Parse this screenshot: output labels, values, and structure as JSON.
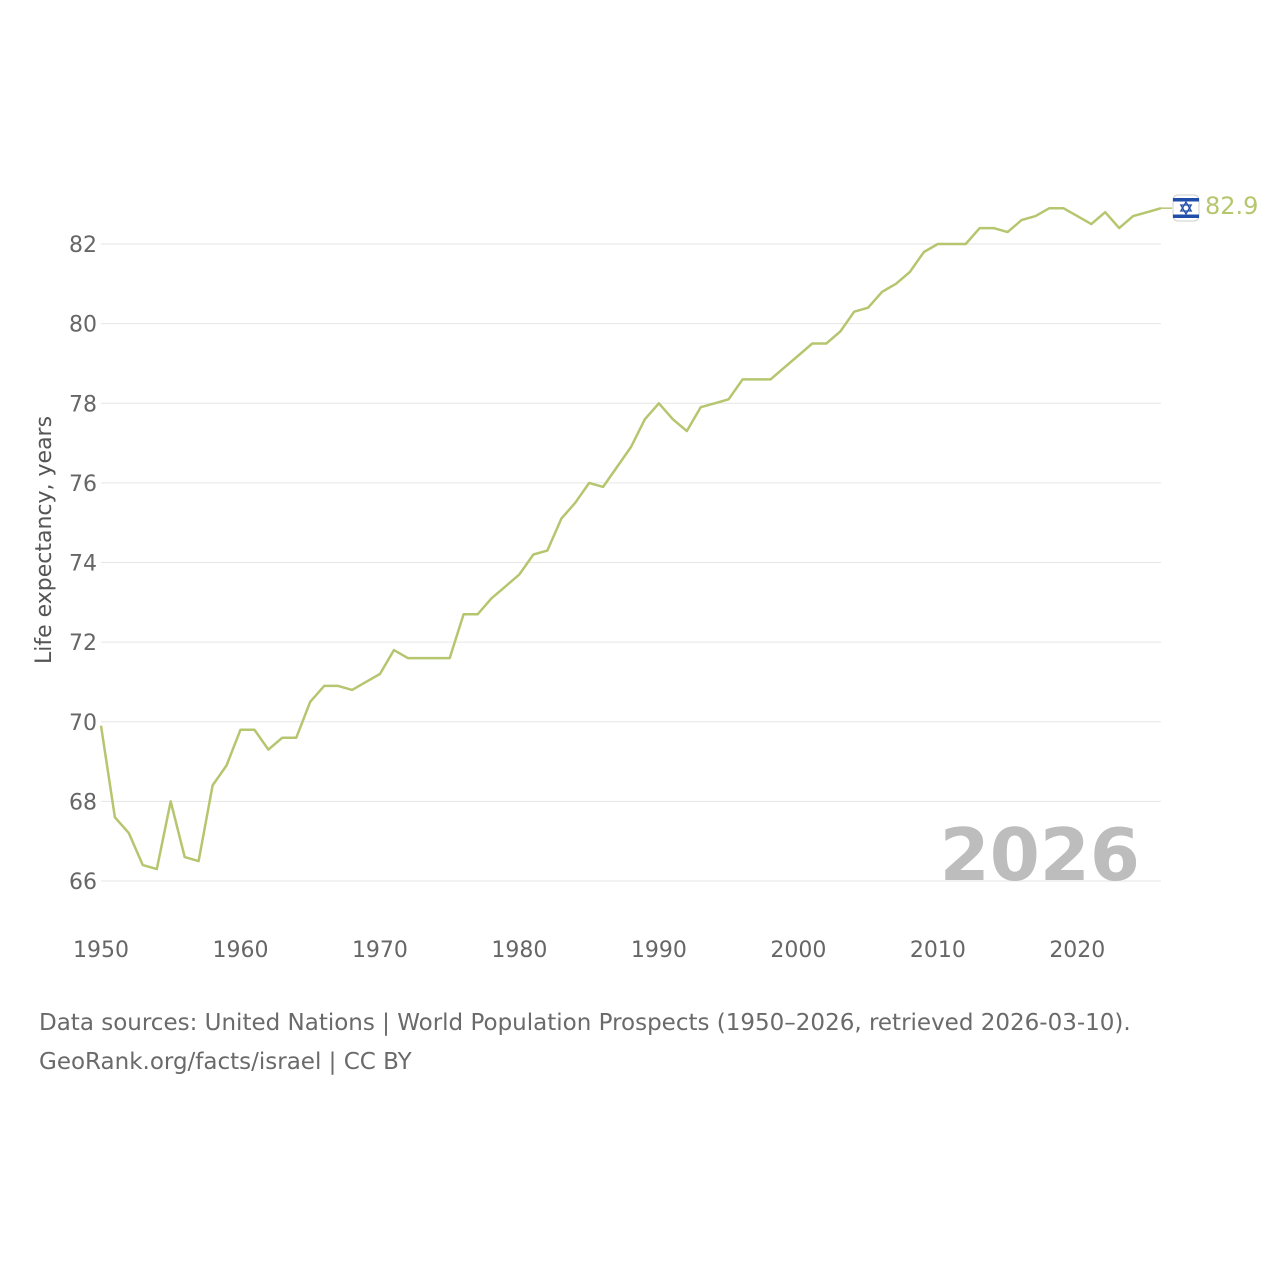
{
  "chart_data": {
    "type": "line",
    "ylabel": "Life expectancy, years",
    "xlabel": "",
    "xlim": [
      1950,
      2026
    ],
    "ylim": [
      65,
      83.5
    ],
    "yticks": [
      66,
      68,
      70,
      72,
      74,
      76,
      78,
      80,
      82
    ],
    "xticks": [
      1950,
      1960,
      1970,
      1980,
      1990,
      2000,
      2010,
      2020
    ],
    "grid": true,
    "current_year_label": "2026",
    "end_value_label": "82.9",
    "color": "#b5c66f",
    "series": [
      {
        "name": "Israel",
        "icon": "israel-flag-icon",
        "x": [
          1950,
          1951,
          1952,
          1953,
          1954,
          1955,
          1956,
          1957,
          1958,
          1959,
          1960,
          1961,
          1962,
          1963,
          1964,
          1965,
          1966,
          1967,
          1968,
          1969,
          1970,
          1971,
          1972,
          1973,
          1974,
          1975,
          1976,
          1977,
          1978,
          1979,
          1980,
          1981,
          1982,
          1983,
          1984,
          1985,
          1986,
          1987,
          1988,
          1989,
          1990,
          1991,
          1992,
          1993,
          1994,
          1995,
          1996,
          1997,
          1998,
          1999,
          2000,
          2001,
          2002,
          2003,
          2004,
          2005,
          2006,
          2007,
          2008,
          2009,
          2010,
          2011,
          2012,
          2013,
          2014,
          2015,
          2016,
          2017,
          2018,
          2019,
          2020,
          2021,
          2022,
          2023,
          2024,
          2025,
          2026
        ],
        "values": [
          69.9,
          67.6,
          67.2,
          66.4,
          66.3,
          68.0,
          66.6,
          66.5,
          68.4,
          68.9,
          69.8,
          69.8,
          69.3,
          69.6,
          69.6,
          70.5,
          70.9,
          70.9,
          70.8,
          71.0,
          71.2,
          71.8,
          71.6,
          71.6,
          71.6,
          71.6,
          72.7,
          72.7,
          73.1,
          73.4,
          73.7,
          74.2,
          74.3,
          75.1,
          75.5,
          76.0,
          75.9,
          76.4,
          76.9,
          77.6,
          78.0,
          77.6,
          77.3,
          77.9,
          78.0,
          78.1,
          78.6,
          78.6,
          78.6,
          78.9,
          79.2,
          79.5,
          79.5,
          79.8,
          80.3,
          80.4,
          80.8,
          81.0,
          81.3,
          81.8,
          82.0,
          82.0,
          82.0,
          82.4,
          82.4,
          82.3,
          82.6,
          82.7,
          82.9,
          82.9,
          82.7,
          82.5,
          82.8,
          82.4,
          82.7,
          82.8,
          82.9
        ]
      }
    ]
  },
  "footer": {
    "sources": "Data sources: United Nations | World Population Prospects (1950–2026, retrieved 2026-03-10).",
    "credit": "GeoRank.org/facts/israel | CC BY"
  }
}
